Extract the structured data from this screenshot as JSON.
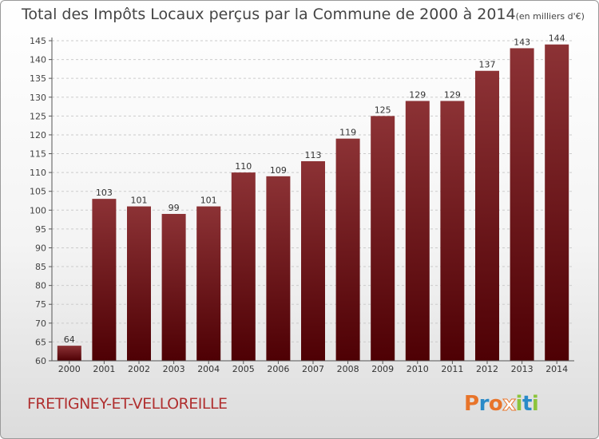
{
  "chart_data": {
    "type": "bar",
    "title": "Total des Impôts Locaux perçus par la Commune de 2000 à 2014",
    "unit": "(en milliers d'€)",
    "categories": [
      "2000",
      "2001",
      "2002",
      "2003",
      "2004",
      "2005",
      "2006",
      "2007",
      "2008",
      "2009",
      "2010",
      "2011",
      "2012",
      "2013",
      "2014"
    ],
    "values": [
      64,
      103,
      101,
      99,
      101,
      110,
      109,
      113,
      119,
      125,
      129,
      129,
      137,
      143,
      144
    ],
    "ylim": [
      60,
      145
    ],
    "yticks": [
      60,
      65,
      70,
      75,
      80,
      85,
      90,
      95,
      100,
      105,
      110,
      115,
      120,
      125,
      130,
      135,
      140,
      145
    ],
    "xlabel": "",
    "ylabel": "",
    "grid": true,
    "bar_color": "#7a1e22"
  },
  "footer": {
    "commune": "FRETIGNEY-ET-VELLOREILLE",
    "logo_letters": [
      "P",
      "r",
      "o",
      "x",
      "i",
      "t",
      "i"
    ],
    "logo_colors": [
      "#e8742a",
      "#2a8ac8",
      "#e8742a",
      "#ffffff",
      "#8cc43c",
      "#2a8ac8",
      "#8cc43c"
    ]
  }
}
